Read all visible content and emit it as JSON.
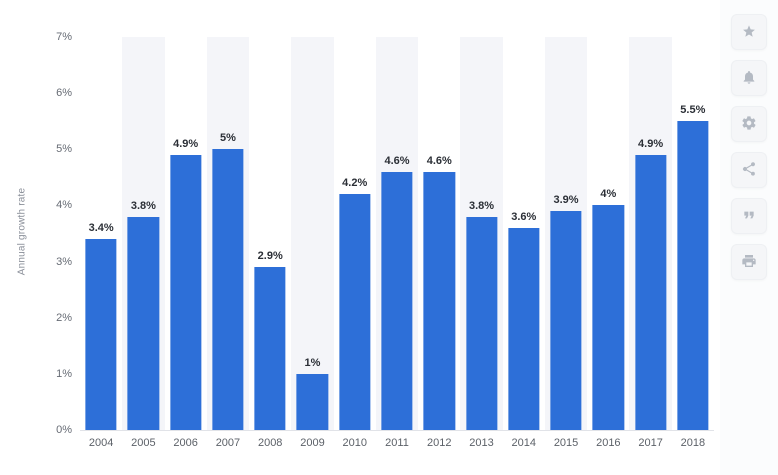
{
  "chart_data": {
    "type": "bar",
    "title": "",
    "xlabel": "",
    "ylabel": "Annual growth rate",
    "categories": [
      "2004",
      "2005",
      "2006",
      "2007",
      "2008",
      "2009",
      "2010",
      "2011",
      "2012",
      "2013",
      "2014",
      "2015",
      "2016",
      "2017",
      "2018"
    ],
    "values": [
      3.4,
      3.8,
      4.9,
      5,
      2.9,
      1,
      4.2,
      4.6,
      4.6,
      3.8,
      3.6,
      3.9,
      4,
      4.9,
      5.5
    ],
    "labels": [
      "3.4%",
      "3.8%",
      "4.9%",
      "5%",
      "2.9%",
      "1%",
      "4.2%",
      "4.6%",
      "4.6%",
      "3.8%",
      "3.6%",
      "3.9%",
      "4%",
      "4.9%",
      "5.5%"
    ],
    "ylim": [
      0,
      7
    ],
    "yticks": [
      "0%",
      "1%",
      "2%",
      "3%",
      "4%",
      "5%",
      "6%",
      "7%"
    ],
    "grid": false,
    "legend": false,
    "bar_color": "#2D6FD8",
    "band_color": "#F4F5F9"
  },
  "toolbar": {
    "icons": [
      "favorite-star",
      "notification-bell",
      "settings-gear",
      "share",
      "citation-quote",
      "print"
    ]
  }
}
